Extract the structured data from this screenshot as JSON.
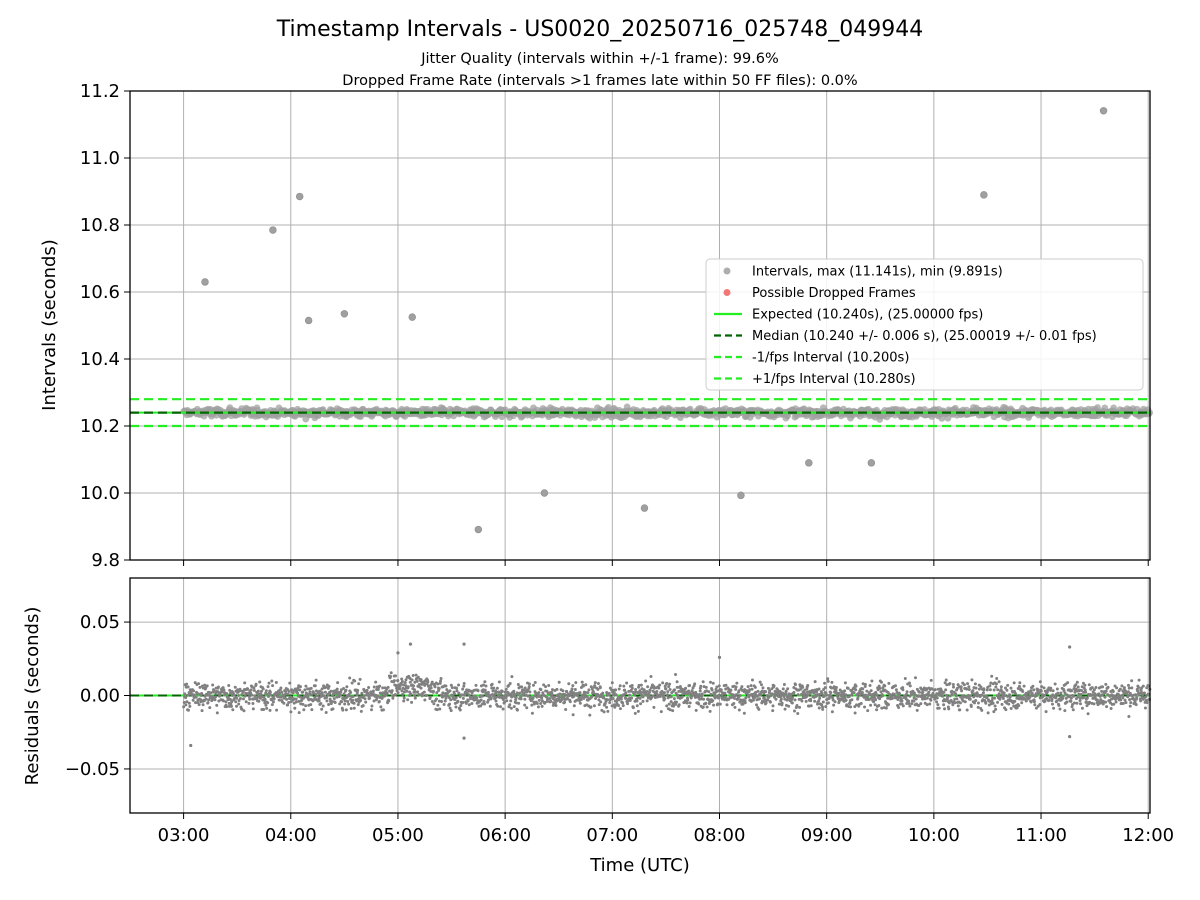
{
  "chart_data": {
    "type": "scatter",
    "title": "Timestamp Intervals - US0020_20250716_025748_049944",
    "subtitle_1": "Jitter Quality (intervals within +/-1 frame): 99.6%",
    "subtitle_2": "Dropped Frame Rate (intervals >1 frames late within 50 FF files): 0.0%",
    "xlabel": "Time (UTC)",
    "x_ticks": [
      "03:00",
      "04:00",
      "05:00",
      "06:00",
      "07:00",
      "08:00",
      "09:00",
      "10:00",
      "11:00",
      "12:00"
    ],
    "xlim": [
      "02:30",
      "12:01"
    ],
    "grid": true,
    "top_panel": {
      "ylabel": "Intervals (seconds)",
      "ylim": [
        9.8,
        11.2
      ],
      "y_ticks": [
        "9.8",
        "10.0",
        "10.2",
        "10.4",
        "10.6",
        "10.8",
        "11.0",
        "11.2"
      ],
      "expected": 10.24,
      "median": 10.24,
      "lower_bound": 10.2,
      "upper_bound": 10.28,
      "typical_spread": 0.015,
      "outliers": [
        {
          "time": "03:12",
          "value": 10.63
        },
        {
          "time": "03:50",
          "value": 10.785
        },
        {
          "time": "04:05",
          "value": 10.885
        },
        {
          "time": "04:10",
          "value": 10.515
        },
        {
          "time": "04:30",
          "value": 10.535
        },
        {
          "time": "05:08",
          "value": 10.525
        },
        {
          "time": "05:45",
          "value": 9.891
        },
        {
          "time": "06:22",
          "value": 10.0
        },
        {
          "time": "07:18",
          "value": 9.955
        },
        {
          "time": "08:12",
          "value": 9.993
        },
        {
          "time": "08:50",
          "value": 10.09
        },
        {
          "time": "09:25",
          "value": 10.09
        },
        {
          "time": "10:28",
          "value": 10.89
        },
        {
          "time": "11:35",
          "value": 11.141
        }
      ],
      "legend_position": "center-right",
      "legend": [
        {
          "label": "Intervals, max (11.141s), min (9.891s)",
          "kind": "dot",
          "color": "#a0a0a0"
        },
        {
          "label": "Possible Dropped Frames",
          "kind": "dot",
          "color": "#f06060"
        },
        {
          "label": "Expected (10.240s), (25.00000 fps)",
          "kind": "solid",
          "color": "#22ee22"
        },
        {
          "label": "Median (10.240 +/- 0.006 s), (25.00019 +/- 0.01 fps)",
          "kind": "dash",
          "color": "#006400"
        },
        {
          "label": "-1/fps Interval (10.200s)",
          "kind": "dash",
          "color": "#22ee22"
        },
        {
          "label": "+1/fps Interval (10.280s)",
          "kind": "dash",
          "color": "#22ee22"
        }
      ]
    },
    "bottom_panel": {
      "ylabel": "Residuals (seconds)",
      "ylim": [
        -0.08,
        0.08
      ],
      "y_ticks": [
        "0.05",
        "0.00",
        "−0.05"
      ],
      "y_tick_values": [
        0.05,
        0.0,
        -0.05
      ],
      "zero_line": 0.0,
      "typical_spread": 0.008,
      "extremes": [
        {
          "time": "03:04",
          "value": -0.034
        },
        {
          "time": "05:00",
          "value": 0.029
        },
        {
          "time": "05:07",
          "value": 0.035
        },
        {
          "time": "05:37",
          "value": 0.035
        },
        {
          "time": "05:37",
          "value": -0.029
        },
        {
          "time": "08:00",
          "value": 0.026
        },
        {
          "time": "11:16",
          "value": 0.033
        },
        {
          "time": "11:16",
          "value": -0.028
        }
      ]
    },
    "colors": {
      "points": "#808080",
      "top_points": "#a0a0a0",
      "expected": "#22ee22",
      "median": "#006400",
      "bounds": "#22ee22",
      "grid": "#b0b0b0"
    }
  }
}
